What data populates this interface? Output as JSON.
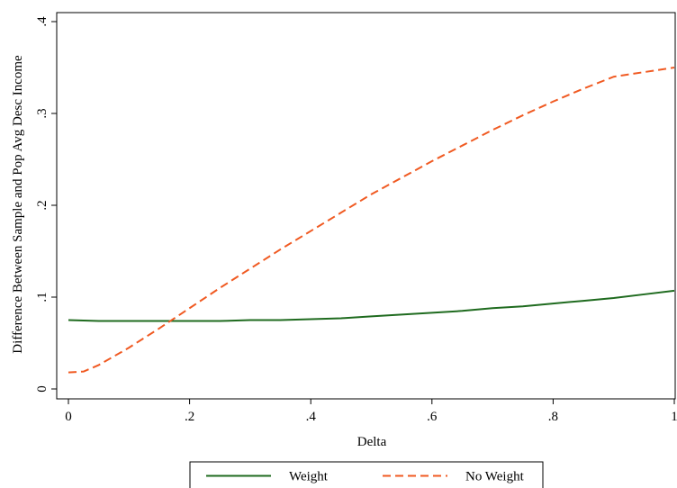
{
  "chart_data": {
    "type": "line",
    "title": "",
    "xlabel": "Delta",
    "ylabel": "Difference Between Sample and Pop Avg Desc Income",
    "xlim": [
      0,
      1
    ],
    "ylim": [
      0,
      0.4
    ],
    "x_ticks": [
      {
        "value": 0,
        "label": "0"
      },
      {
        "value": 0.2,
        "label": ".2"
      },
      {
        "value": 0.4,
        "label": ".4"
      },
      {
        "value": 0.6,
        "label": ".6"
      },
      {
        "value": 0.8,
        "label": ".8"
      },
      {
        "value": 1,
        "label": "1"
      }
    ],
    "y_ticks": [
      {
        "value": 0,
        "label": "0"
      },
      {
        "value": 0.1,
        "label": ".1"
      },
      {
        "value": 0.2,
        "label": ".2"
      },
      {
        "value": 0.3,
        "label": ".3"
      },
      {
        "value": 0.4,
        "label": ".4"
      }
    ],
    "grid": false,
    "legend_position": "bottom",
    "series": [
      {
        "name": "Weight",
        "color": "#1f6b1f",
        "style": "solid",
        "x": [
          0,
          0.05,
          0.1,
          0.15,
          0.2,
          0.25,
          0.3,
          0.35,
          0.4,
          0.45,
          0.5,
          0.55,
          0.6,
          0.65,
          0.7,
          0.75,
          0.8,
          0.85,
          0.9,
          0.95,
          1.0
        ],
        "y": [
          0.075,
          0.074,
          0.074,
          0.074,
          0.074,
          0.074,
          0.075,
          0.075,
          0.076,
          0.077,
          0.079,
          0.081,
          0.083,
          0.085,
          0.088,
          0.09,
          0.093,
          0.096,
          0.099,
          0.103,
          0.107
        ]
      },
      {
        "name": "No Weight",
        "color": "#f05a22",
        "style": "dashed",
        "x": [
          0,
          0.025,
          0.05,
          0.1,
          0.15,
          0.2,
          0.25,
          0.3,
          0.35,
          0.4,
          0.45,
          0.5,
          0.55,
          0.6,
          0.65,
          0.7,
          0.75,
          0.8,
          0.85,
          0.9,
          0.95,
          1.0
        ],
        "y": [
          0.018,
          0.019,
          0.026,
          0.045,
          0.066,
          0.088,
          0.11,
          0.131,
          0.152,
          0.172,
          0.192,
          0.212,
          0.23,
          0.248,
          0.265,
          0.282,
          0.298,
          0.313,
          0.327,
          0.34,
          0.345,
          0.35
        ]
      }
    ]
  }
}
